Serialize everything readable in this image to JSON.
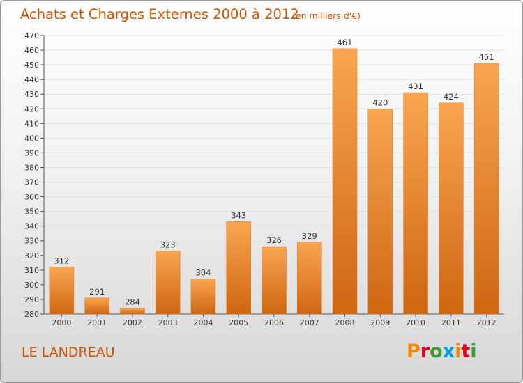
{
  "header": {
    "title": "Achats et Charges Externes 2000 à 2012",
    "subtitle": "(en milliers d'€)"
  },
  "footer": {
    "commune": "LE LANDREAU",
    "logo": "Proxiti"
  },
  "colors": {
    "bar_light": "#f9a552",
    "bar_dark": "#cf6610",
    "text_accent": "#d35400",
    "grid": "#e2e2e2",
    "logo_letters": [
      "#f18a00",
      "#e2001a",
      "#3a9c35",
      "#009fe3",
      "#f18a00",
      "#e2001a",
      "#3a9c35"
    ]
  },
  "chart_data": {
    "type": "bar",
    "title": "Achats et Charges Externes 2000 à 2012",
    "subtitle": "(en milliers d'€)",
    "xlabel": "",
    "ylabel": "",
    "categories": [
      "2000",
      "2001",
      "2002",
      "2003",
      "2004",
      "2005",
      "2006",
      "2007",
      "2008",
      "2009",
      "2010",
      "2011",
      "2012"
    ],
    "values": [
      312,
      291,
      284,
      323,
      304,
      343,
      326,
      329,
      461,
      420,
      431,
      424,
      451
    ],
    "value_labels": [
      "312",
      "291",
      "284",
      "323",
      "304",
      "343",
      "326",
      "329",
      "461",
      "420",
      "431",
      "424",
      "451"
    ],
    "ylim": [
      280,
      470
    ],
    "yticks": [
      "280",
      "290",
      "300",
      "310",
      "320",
      "330",
      "340",
      "350",
      "360",
      "370",
      "380",
      "390",
      "400",
      "410",
      "420",
      "430",
      "440",
      "450",
      "460",
      "470"
    ],
    "grid": true,
    "legend": "none"
  }
}
